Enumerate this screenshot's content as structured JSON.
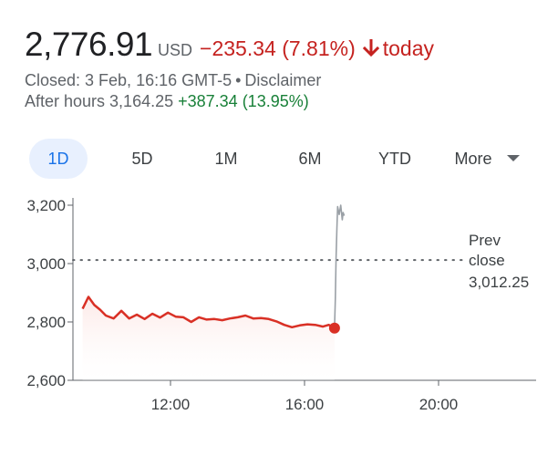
{
  "quote": {
    "price": "2,776.91",
    "currency": "USD",
    "change": "−235.34 (7.81%)",
    "change_direction": "down",
    "period": "today",
    "closed_label": "Closed: 3 Feb, 16:16 GMT-5",
    "separator": "•",
    "disclaimer": "Disclaimer",
    "after_hours_label": "After hours 3,164.25",
    "after_hours_change": "+387.34 (13.95%)",
    "colors": {
      "negative": "#c5221f",
      "positive": "#188038",
      "accent": "#1a73e8"
    }
  },
  "range_tabs": [
    {
      "label": "1D",
      "active": true
    },
    {
      "label": "5D",
      "active": false
    },
    {
      "label": "1M",
      "active": false
    },
    {
      "label": "6M",
      "active": false
    },
    {
      "label": "YTD",
      "active": false
    },
    {
      "label": "More",
      "active": false,
      "icon": "caret-down-icon"
    }
  ],
  "chart_data": {
    "type": "line",
    "y_ticks": [
      "3,200",
      "3,000",
      "2,800",
      "2,600"
    ],
    "x_ticks": [
      "12:00",
      "16:00",
      "20:00"
    ],
    "ylim": [
      2600,
      3200
    ],
    "xlim_hours": [
      9.25,
      21.2
    ],
    "prev_close": {
      "label_lines": [
        "Prev",
        "close",
        "3,012.25"
      ],
      "value": 3012.25
    },
    "colors": {
      "regular": "#d93025",
      "after_hours": "#9aa0a6",
      "fill": "#fce8e6"
    },
    "series": [
      {
        "segment": "regular",
        "x": [
          9.5,
          9.65,
          9.8,
          9.95,
          10.1,
          10.3,
          10.5,
          10.7,
          10.9,
          11.1,
          11.3,
          11.5,
          11.7,
          11.9,
          12.1,
          12.3,
          12.5,
          12.7,
          12.9,
          13.1,
          13.3,
          13.5,
          13.7,
          13.9,
          14.1,
          14.3,
          14.5,
          14.7,
          14.9,
          15.1,
          15.3,
          15.5,
          15.7,
          15.85,
          16.0
        ],
        "y": [
          2845,
          2886,
          2858,
          2842,
          2822,
          2812,
          2838,
          2812,
          2825,
          2810,
          2828,
          2815,
          2832,
          2818,
          2816,
          2800,
          2816,
          2808,
          2810,
          2806,
          2812,
          2816,
          2822,
          2812,
          2813,
          2810,
          2802,
          2790,
          2782,
          2788,
          2792,
          2790,
          2784,
          2790,
          2779
        ]
      },
      {
        "segment": "after_hours",
        "x": [
          16.0,
          16.02,
          16.04,
          16.06,
          16.08,
          16.12,
          16.16,
          16.2,
          16.22,
          16.25
        ],
        "y": [
          2780,
          2880,
          3020,
          3120,
          3195,
          3168,
          3200,
          3150,
          3175,
          3164
        ]
      }
    ]
  }
}
